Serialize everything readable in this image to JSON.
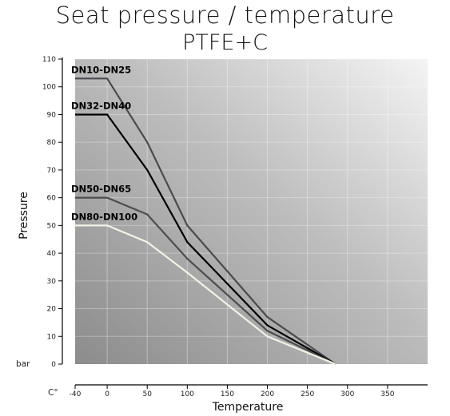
{
  "chart_data": {
    "type": "line",
    "title": "Seat pressure / temperature",
    "subtitle": "PTFE+C",
    "xlabel": "Temperature",
    "ylabel": "Pressure",
    "x_unit": "C°",
    "y_unit": "bar",
    "xlim": [
      -40,
      400
    ],
    "ylim": [
      0,
      110
    ],
    "x_ticks": [
      -40,
      0,
      50,
      100,
      150,
      200,
      250,
      300,
      350
    ],
    "y_ticks": [
      0,
      10,
      20,
      30,
      40,
      50,
      60,
      70,
      80,
      90,
      100,
      110
    ],
    "grid": true,
    "series": [
      {
        "name": "DN10-DN25",
        "color": "#4a4a50",
        "x": [
          -40,
          0,
          50,
          100,
          200,
          285
        ],
        "y": [
          103,
          103,
          80,
          50,
          17,
          0
        ]
      },
      {
        "name": "DN32-DN40",
        "color": "#000000",
        "x": [
          -40,
          0,
          50,
          100,
          200,
          285
        ],
        "y": [
          90,
          90,
          70,
          44,
          14,
          0
        ]
      },
      {
        "name": "DN50-DN65",
        "color": "#4d4d4d",
        "x": [
          -40,
          0,
          50,
          100,
          200,
          285
        ],
        "y": [
          60,
          60,
          54,
          38,
          12,
          0
        ]
      },
      {
        "name": "DN80-DN100",
        "color": "#f2f2e6",
        "x": [
          -40,
          0,
          50,
          100,
          200,
          285
        ],
        "y": [
          50,
          50,
          44,
          33,
          10,
          0
        ]
      }
    ]
  }
}
